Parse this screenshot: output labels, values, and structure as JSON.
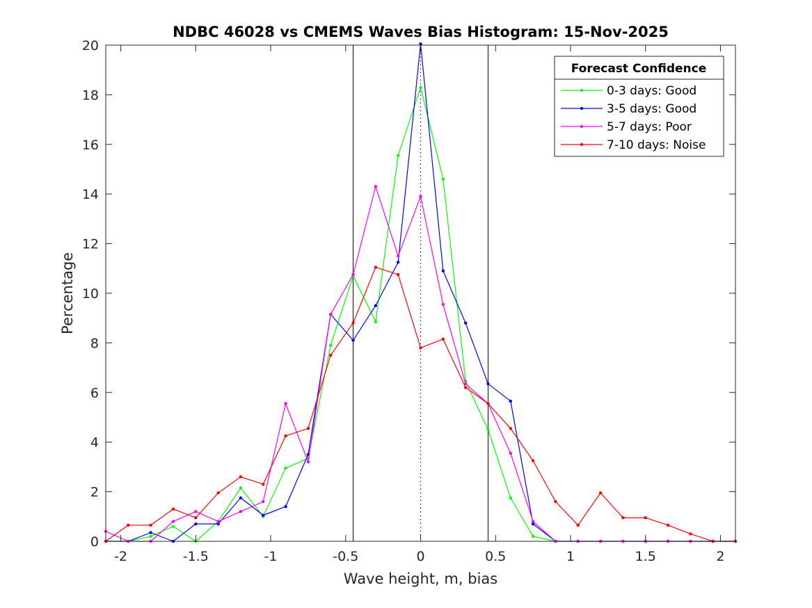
{
  "chart_data": {
    "type": "line",
    "title": "NDBC 46028 vs CMEMS Waves Bias Histogram: 15-Nov-2025",
    "xlabel": "Wave height, m, bias",
    "ylabel": "Percentage",
    "xlim": [
      -2.1,
      2.1
    ],
    "ylim": [
      0,
      20
    ],
    "xticks": [
      -2,
      -1.5,
      -1,
      -0.5,
      0,
      0.5,
      1,
      1.5,
      2
    ],
    "xtick_labels": [
      "-2",
      "-1.5",
      "-1",
      "-0.5",
      "0",
      "0.5",
      "1",
      "1.5",
      "2"
    ],
    "yticks": [
      0,
      2,
      4,
      6,
      8,
      10,
      12,
      14,
      16,
      18,
      20
    ],
    "ytick_labels": [
      "0",
      "2",
      "4",
      "6",
      "8",
      "10",
      "12",
      "14",
      "16",
      "18",
      "20"
    ],
    "grid": false,
    "vertical_lines": [
      {
        "x": -0.45,
        "style": "solid",
        "color": "#000000"
      },
      {
        "x": 0,
        "style": "dotted",
        "color": "#000000"
      },
      {
        "x": 0.45,
        "style": "solid",
        "color": "#000000"
      }
    ],
    "legend": {
      "title": "Forecast Confidence",
      "location": "top-right"
    },
    "x": [
      -2.1,
      -1.95,
      -1.8,
      -1.65,
      -1.5,
      -1.35,
      -1.2,
      -1.05,
      -0.9,
      -0.75,
      -0.6,
      -0.45,
      -0.3,
      -0.15,
      0,
      0.15,
      0.3,
      0.45,
      0.6,
      0.75,
      0.9,
      1.05,
      1.2,
      1.35,
      1.5,
      1.65,
      1.8,
      1.95,
      2.1
    ],
    "series": [
      {
        "name": "0-3 days: Good",
        "color": "#00ff00",
        "values": [
          0,
          0,
          0.2,
          0.6,
          0,
          0.8,
          2.15,
          1,
          2.95,
          3.35,
          7.9,
          10.7,
          8.85,
          15.55,
          18.3,
          14.6,
          6.45,
          4.5,
          1.75,
          0.2,
          0,
          0,
          0,
          0,
          0,
          0,
          0,
          0,
          0
        ]
      },
      {
        "name": "3-5 days: Good",
        "color": "#0000ff",
        "values": [
          0,
          0,
          0.35,
          0,
          0.7,
          0.7,
          1.75,
          1.05,
          1.4,
          3.5,
          9.15,
          8.1,
          9.5,
          11.25,
          20.05,
          10.9,
          8.8,
          6.35,
          5.65,
          0.7,
          0,
          0,
          0,
          0,
          0,
          0,
          0,
          0,
          0
        ]
      },
      {
        "name": "5-7 days: Poor",
        "color": "#ff00ff",
        "values": [
          0.4,
          0,
          0,
          0.8,
          1.2,
          0.8,
          1.2,
          1.6,
          5.55,
          3.2,
          9.15,
          10.75,
          14.3,
          11.5,
          13.9,
          9.55,
          6.35,
          5.55,
          3.55,
          0.8,
          0,
          0,
          0,
          0,
          0,
          0,
          0,
          0,
          0
        ]
      },
      {
        "name": "7-10 days: Noise",
        "color": "#ff0000",
        "values": [
          0,
          0.65,
          0.65,
          1.3,
          0.95,
          1.95,
          2.6,
          2.3,
          4.25,
          4.55,
          7.5,
          8.8,
          11.05,
          10.75,
          7.8,
          8.15,
          6.2,
          5.55,
          4.55,
          3.25,
          1.6,
          0.65,
          1.95,
          0.95,
          0.95,
          0.65,
          0.3,
          0,
          0
        ]
      }
    ]
  }
}
